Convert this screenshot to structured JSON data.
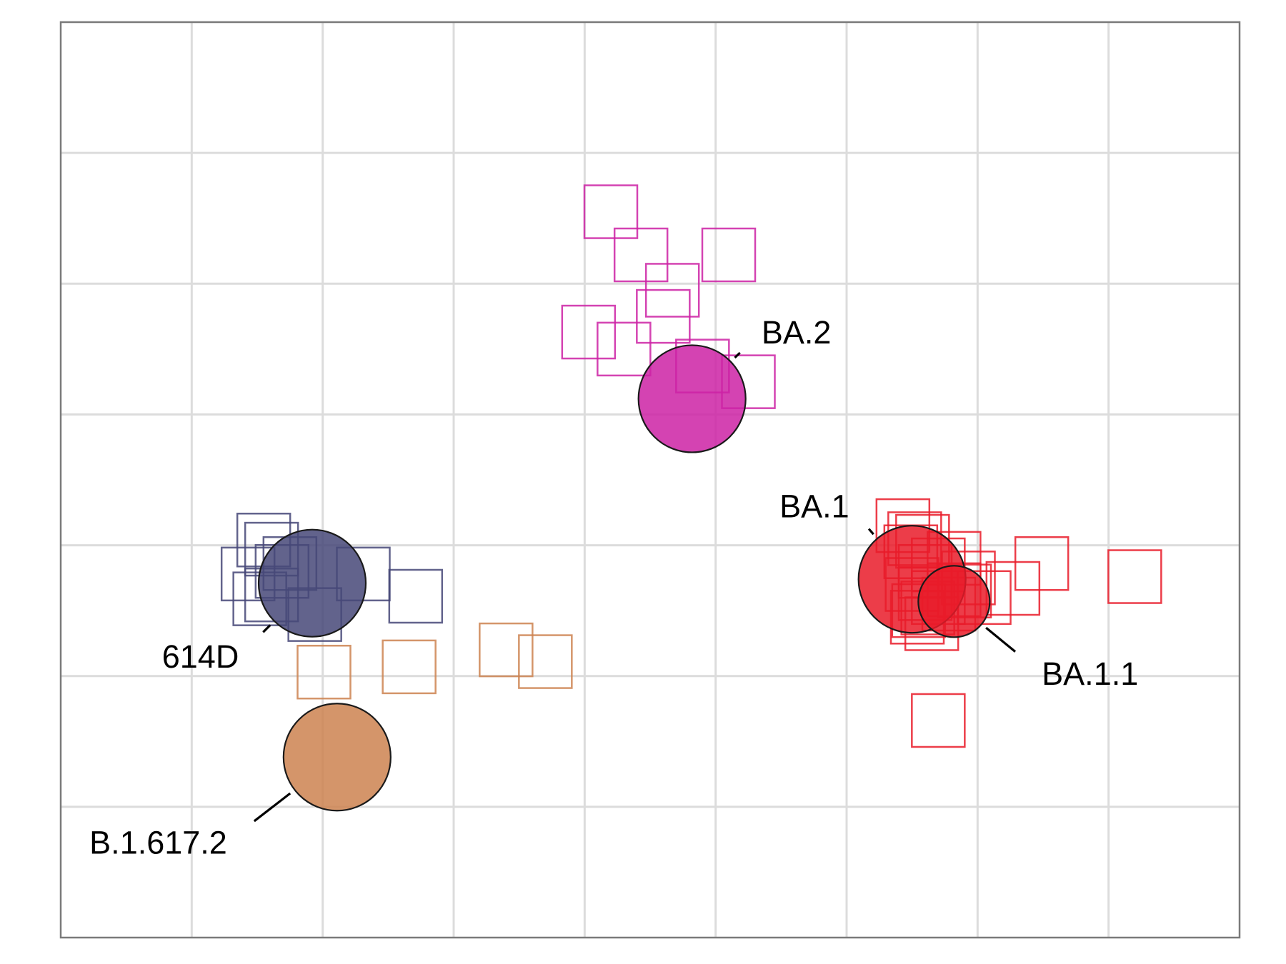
{
  "chart_data": {
    "type": "scatter",
    "title": "",
    "xlabel": "",
    "ylabel": "",
    "xlim": [
      0,
      9
    ],
    "ylim": [
      0,
      7
    ],
    "grid": true,
    "legend": "none",
    "antigens": [
      {
        "name": "614D",
        "x": 1.92,
        "y": 2.71,
        "color": "#464878",
        "label_x": 1.36,
        "label_y": 2.15
      },
      {
        "name": "B.1.617.2",
        "x": 2.11,
        "y": 1.38,
        "color": "#cc8250",
        "label_x": 1.27,
        "label_y": 0.73
      },
      {
        "name": "BA.2",
        "x": 4.82,
        "y": 4.12,
        "color": "#cc22a5",
        "label_x": 5.35,
        "label_y": 4.63
      },
      {
        "name": "BA.1",
        "x": 6.5,
        "y": 2.74,
        "color": "#e91b29",
        "label_x": 6.02,
        "label_y": 3.3
      },
      {
        "name": "BA.1.1",
        "x": 6.82,
        "y": 2.57,
        "color": "#e91b29",
        "label_x": 7.49,
        "label_y": 2.02
      }
    ],
    "sera_groups": [
      {
        "antigen": "614D",
        "color": "#464878",
        "points": [
          [
            1.43,
            2.78
          ],
          [
            1.61,
            2.62
          ],
          [
            1.52,
            2.59
          ],
          [
            1.69,
            2.8
          ],
          [
            1.75,
            2.86
          ],
          [
            1.61,
            2.97
          ],
          [
            1.55,
            3.04
          ],
          [
            2.31,
            2.78
          ],
          [
            2.71,
            2.61
          ],
          [
            1.94,
            2.47
          ]
        ]
      },
      {
        "antigen": "B.1.617.2",
        "color": "#cc8250",
        "points": [
          [
            2.01,
            2.03
          ],
          [
            2.66,
            2.07
          ],
          [
            3.4,
            2.2
          ],
          [
            3.7,
            2.11
          ]
        ]
      },
      {
        "antigen": "BA.2",
        "color": "#cc22a5",
        "points": [
          [
            4.2,
            5.55
          ],
          [
            4.43,
            5.22
          ],
          [
            4.67,
            4.95
          ],
          [
            5.1,
            5.22
          ],
          [
            4.6,
            4.75
          ],
          [
            4.03,
            4.63
          ],
          [
            4.9,
            4.37
          ],
          [
            5.25,
            4.25
          ],
          [
            4.3,
            4.5
          ]
        ]
      },
      {
        "antigen": "BA.1",
        "color": "#e91b29",
        "points": [
          [
            6.43,
            3.15
          ],
          [
            6.52,
            3.05
          ],
          [
            6.58,
            3.03
          ],
          [
            6.49,
            2.95
          ],
          [
            6.6,
            2.8
          ],
          [
            6.7,
            2.85
          ],
          [
            6.82,
            2.9
          ],
          [
            6.5,
            2.7
          ],
          [
            6.6,
            2.63
          ],
          [
            6.7,
            2.6
          ],
          [
            6.78,
            2.55
          ],
          [
            6.54,
            2.45
          ],
          [
            6.65,
            2.4
          ],
          [
            6.9,
            2.65
          ],
          [
            6.93,
            2.75
          ],
          [
            7.05,
            2.6
          ],
          [
            7.49,
            2.86
          ],
          [
            7.27,
            2.67
          ],
          [
            6.82,
            2.66
          ],
          [
            8.2,
            2.76
          ],
          [
            6.7,
            1.66
          ],
          [
            6.55,
            2.5
          ],
          [
            6.62,
            2.52
          ]
        ]
      }
    ]
  }
}
